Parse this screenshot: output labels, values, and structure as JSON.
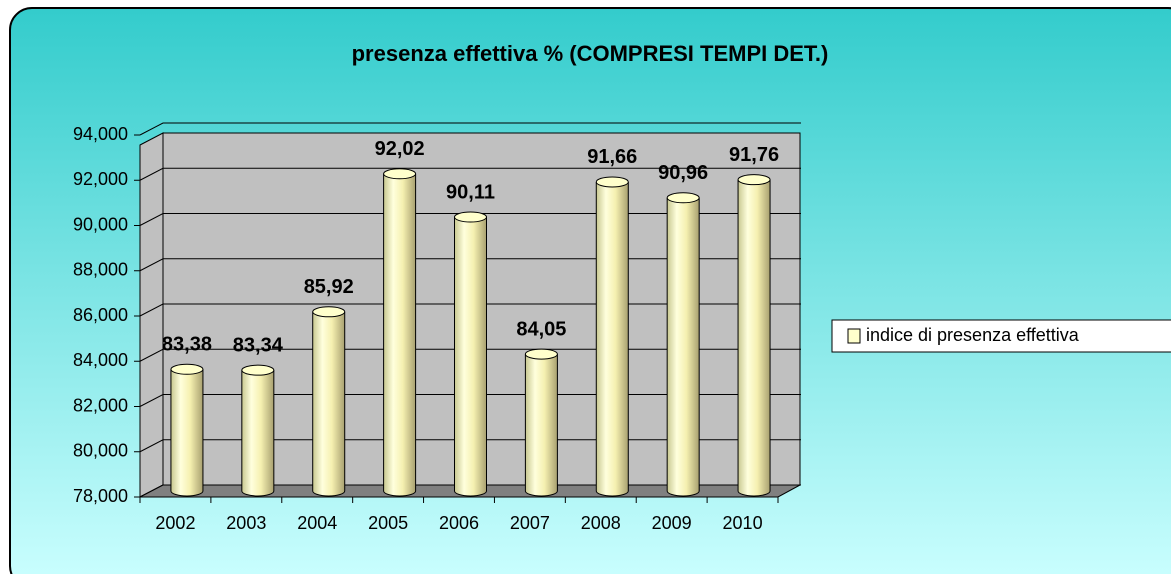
{
  "chart_data": {
    "type": "bar",
    "title": "presenza effettiva % (COMPRESI TEMPI DET.)",
    "categories": [
      "2002",
      "2003",
      "2004",
      "2005",
      "2006",
      "2007",
      "2008",
      "2009",
      "2010"
    ],
    "series": [
      {
        "name": "indice di presenza effettiva",
        "color": "#ffffcc",
        "values": [
          83.38,
          83.34,
          85.92,
          92.02,
          90.11,
          84.05,
          91.66,
          90.96,
          91.76
        ],
        "value_labels": [
          "83,38",
          "83,34",
          "85,92",
          "92,02",
          "90,11",
          "84,05",
          "91,66",
          "90,96",
          "91,76"
        ]
      }
    ],
    "ylim": [
      78,
      94
    ],
    "yticks": [
      {
        "value": 78,
        "label": "78,000"
      },
      {
        "value": 80,
        "label": "80,000"
      },
      {
        "value": 82,
        "label": "82,000"
      },
      {
        "value": 84,
        "label": "84,000"
      },
      {
        "value": 86,
        "label": "86,000"
      },
      {
        "value": 88,
        "label": "88,000"
      },
      {
        "value": 90,
        "label": "90,000"
      },
      {
        "value": 92,
        "label": "92,000"
      },
      {
        "value": 94,
        "label": "94,000"
      }
    ],
    "grid": true,
    "legend": "right"
  }
}
